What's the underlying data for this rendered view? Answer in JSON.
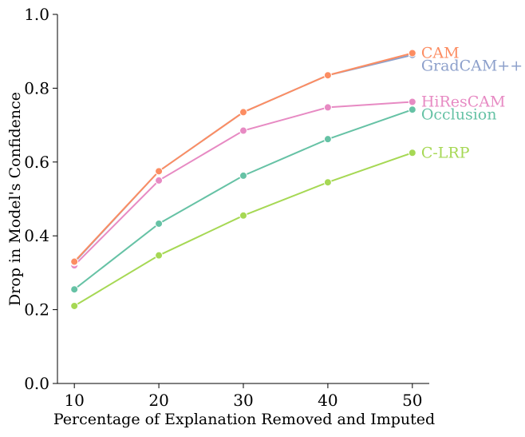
{
  "chart_data": {
    "type": "line",
    "title": "",
    "xlabel": "Percentage of Explanation Removed and Imputed",
    "ylabel": "Drop in Model's Confidence",
    "x": [
      10,
      20,
      30,
      40,
      50
    ],
    "xticks": [
      "10",
      "20",
      "30",
      "40",
      "50"
    ],
    "xlim": [
      8,
      52
    ],
    "ylim": [
      0,
      1.0
    ],
    "yticks": [
      "0.0",
      "0.2",
      "0.4",
      "0.6",
      "0.8",
      "1.0"
    ],
    "grid": false,
    "legend": "inline labels at line ends",
    "series": [
      {
        "name": "CAM",
        "color": "#fc8d62",
        "values": [
          0.33,
          0.575,
          0.735,
          0.835,
          0.895
        ]
      },
      {
        "name": "GradCAM++",
        "color": "#8da0cb",
        "values": [
          0.328,
          0.575,
          0.735,
          0.835,
          0.89
        ]
      },
      {
        "name": "HiResCAM",
        "color": "#e78ac3",
        "values": [
          0.32,
          0.55,
          0.685,
          0.748,
          0.763
        ]
      },
      {
        "name": "Occlusion",
        "color": "#66c2a5",
        "values": [
          0.255,
          0.433,
          0.563,
          0.662,
          0.742
        ]
      },
      {
        "name": "C-LRP",
        "color": "#a6d854",
        "values": [
          0.21,
          0.347,
          0.455,
          0.545,
          0.625
        ]
      }
    ]
  }
}
